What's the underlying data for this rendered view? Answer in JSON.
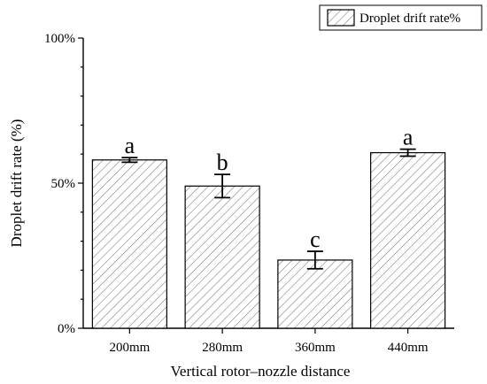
{
  "chart_data": {
    "type": "bar",
    "xlabel": "Vertical rotor–nozzle distance",
    "ylabel": "Droplet drift rate (%)",
    "categories": [
      "200mm",
      "280mm",
      "360mm",
      "440mm"
    ],
    "series": [
      {
        "name": "Droplet drift rate%",
        "values": [
          58,
          49,
          23.5,
          60.5
        ],
        "errors": [
          0.8,
          4,
          3,
          1.2
        ],
        "significance": [
          "a",
          "b",
          "c",
          "a"
        ]
      }
    ],
    "ylim": [
      0,
      100
    ],
    "yticks": [
      0,
      50,
      100
    ],
    "ytick_labels": [
      "0%",
      "50%",
      "100%"
    ],
    "legend_position": "top-right",
    "pattern": "diagonal-hatch",
    "grid": false
  }
}
